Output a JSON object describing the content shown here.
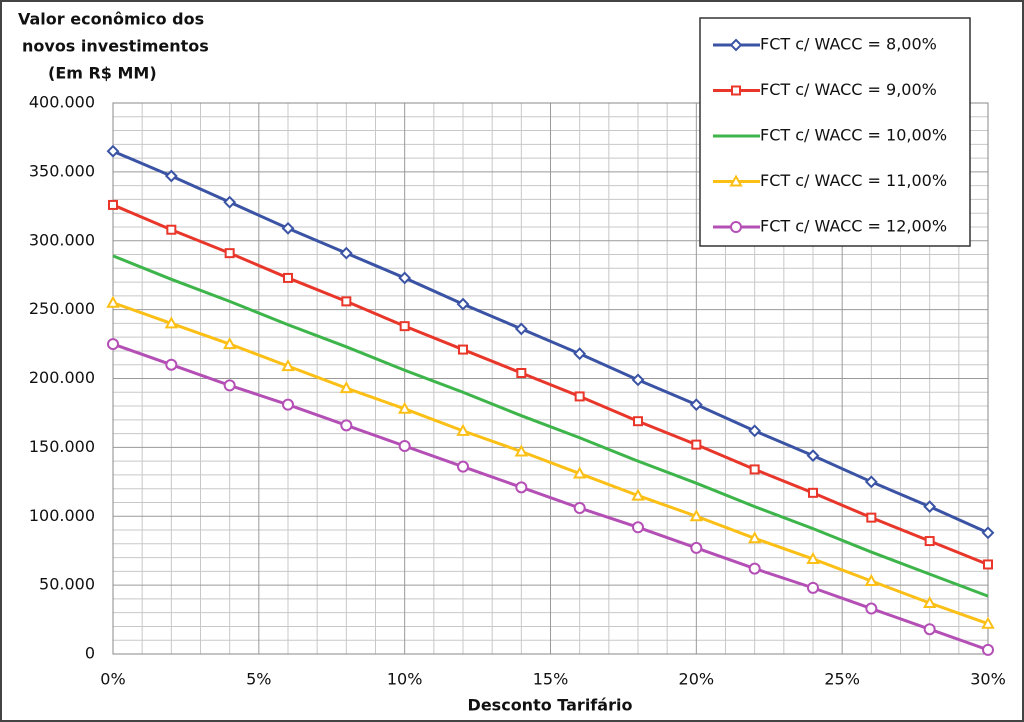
{
  "chart_data": {
    "type": "line",
    "ylabel": [
      "Valor econômico dos",
      "novos investimentos",
      "(Em R$ MM)"
    ],
    "xlabel": "Desconto Tarifário",
    "x": [
      0,
      2,
      4,
      6,
      8,
      10,
      12,
      14,
      16,
      18,
      20,
      22,
      24,
      26,
      28,
      30
    ],
    "series": [
      {
        "name": "FCT c/ WACC = 8,00%",
        "color": "#3a53a4",
        "marker": "diamond",
        "values": [
          365000,
          347000,
          328000,
          309000,
          291000,
          273000,
          254000,
          236000,
          218000,
          199000,
          181000,
          162000,
          144000,
          125000,
          107000,
          88000
        ]
      },
      {
        "name": "FCT c/ WACC = 9,00%",
        "color": "#e8372a",
        "marker": "square",
        "values": [
          326000,
          308000,
          291000,
          273000,
          256000,
          238000,
          221000,
          204000,
          187000,
          169000,
          152000,
          134000,
          117000,
          99000,
          82000,
          65000
        ]
      },
      {
        "name": "FCT c/ WACC = 10,00%",
        "color": "#3db54a",
        "marker": "none",
        "values": [
          289000,
          272000,
          256000,
          239000,
          223000,
          206000,
          190000,
          173000,
          157000,
          140000,
          124000,
          107000,
          91000,
          74000,
          58000,
          42000
        ]
      },
      {
        "name": "FCT c/ WACC = 11,00%",
        "color": "#fbbf16",
        "marker": "triangle",
        "values": [
          255000,
          240000,
          225000,
          209000,
          193000,
          178000,
          162000,
          147000,
          131000,
          115000,
          100000,
          84000,
          69000,
          53000,
          37000,
          22000
        ]
      },
      {
        "name": "FCT c/ WACC = 12,00%",
        "color": "#b44fb5",
        "marker": "circle",
        "values": [
          225000,
          210000,
          195000,
          181000,
          166000,
          151000,
          136000,
          121000,
          106000,
          92000,
          77000,
          62000,
          48000,
          33000,
          18000,
          3000
        ]
      }
    ],
    "xlim": [
      0,
      30
    ],
    "xticks": [
      {
        "value": 0,
        "label": "0%"
      },
      {
        "value": 5,
        "label": "5%"
      },
      {
        "value": 10,
        "label": "10%"
      },
      {
        "value": 15,
        "label": "15%"
      },
      {
        "value": 20,
        "label": "20%"
      },
      {
        "value": 25,
        "label": "25%"
      },
      {
        "value": 30,
        "label": "30%"
      }
    ],
    "ylim": [
      0,
      400000
    ],
    "yticks": [
      0,
      {
        "value": 50000,
        "label": "50.000"
      },
      {
        "value": 100000,
        "label": "100.000"
      },
      {
        "value": 150000,
        "label": "150.000"
      },
      {
        "value": 200000,
        "label": "200.000"
      },
      {
        "value": 250000,
        "label": "250.000"
      },
      {
        "value": 300000,
        "label": "300.000"
      },
      {
        "value": 350000,
        "label": "350.000"
      },
      {
        "value": 400000,
        "label": "400.000"
      }
    ],
    "grid": true,
    "legend": "top-right"
  }
}
